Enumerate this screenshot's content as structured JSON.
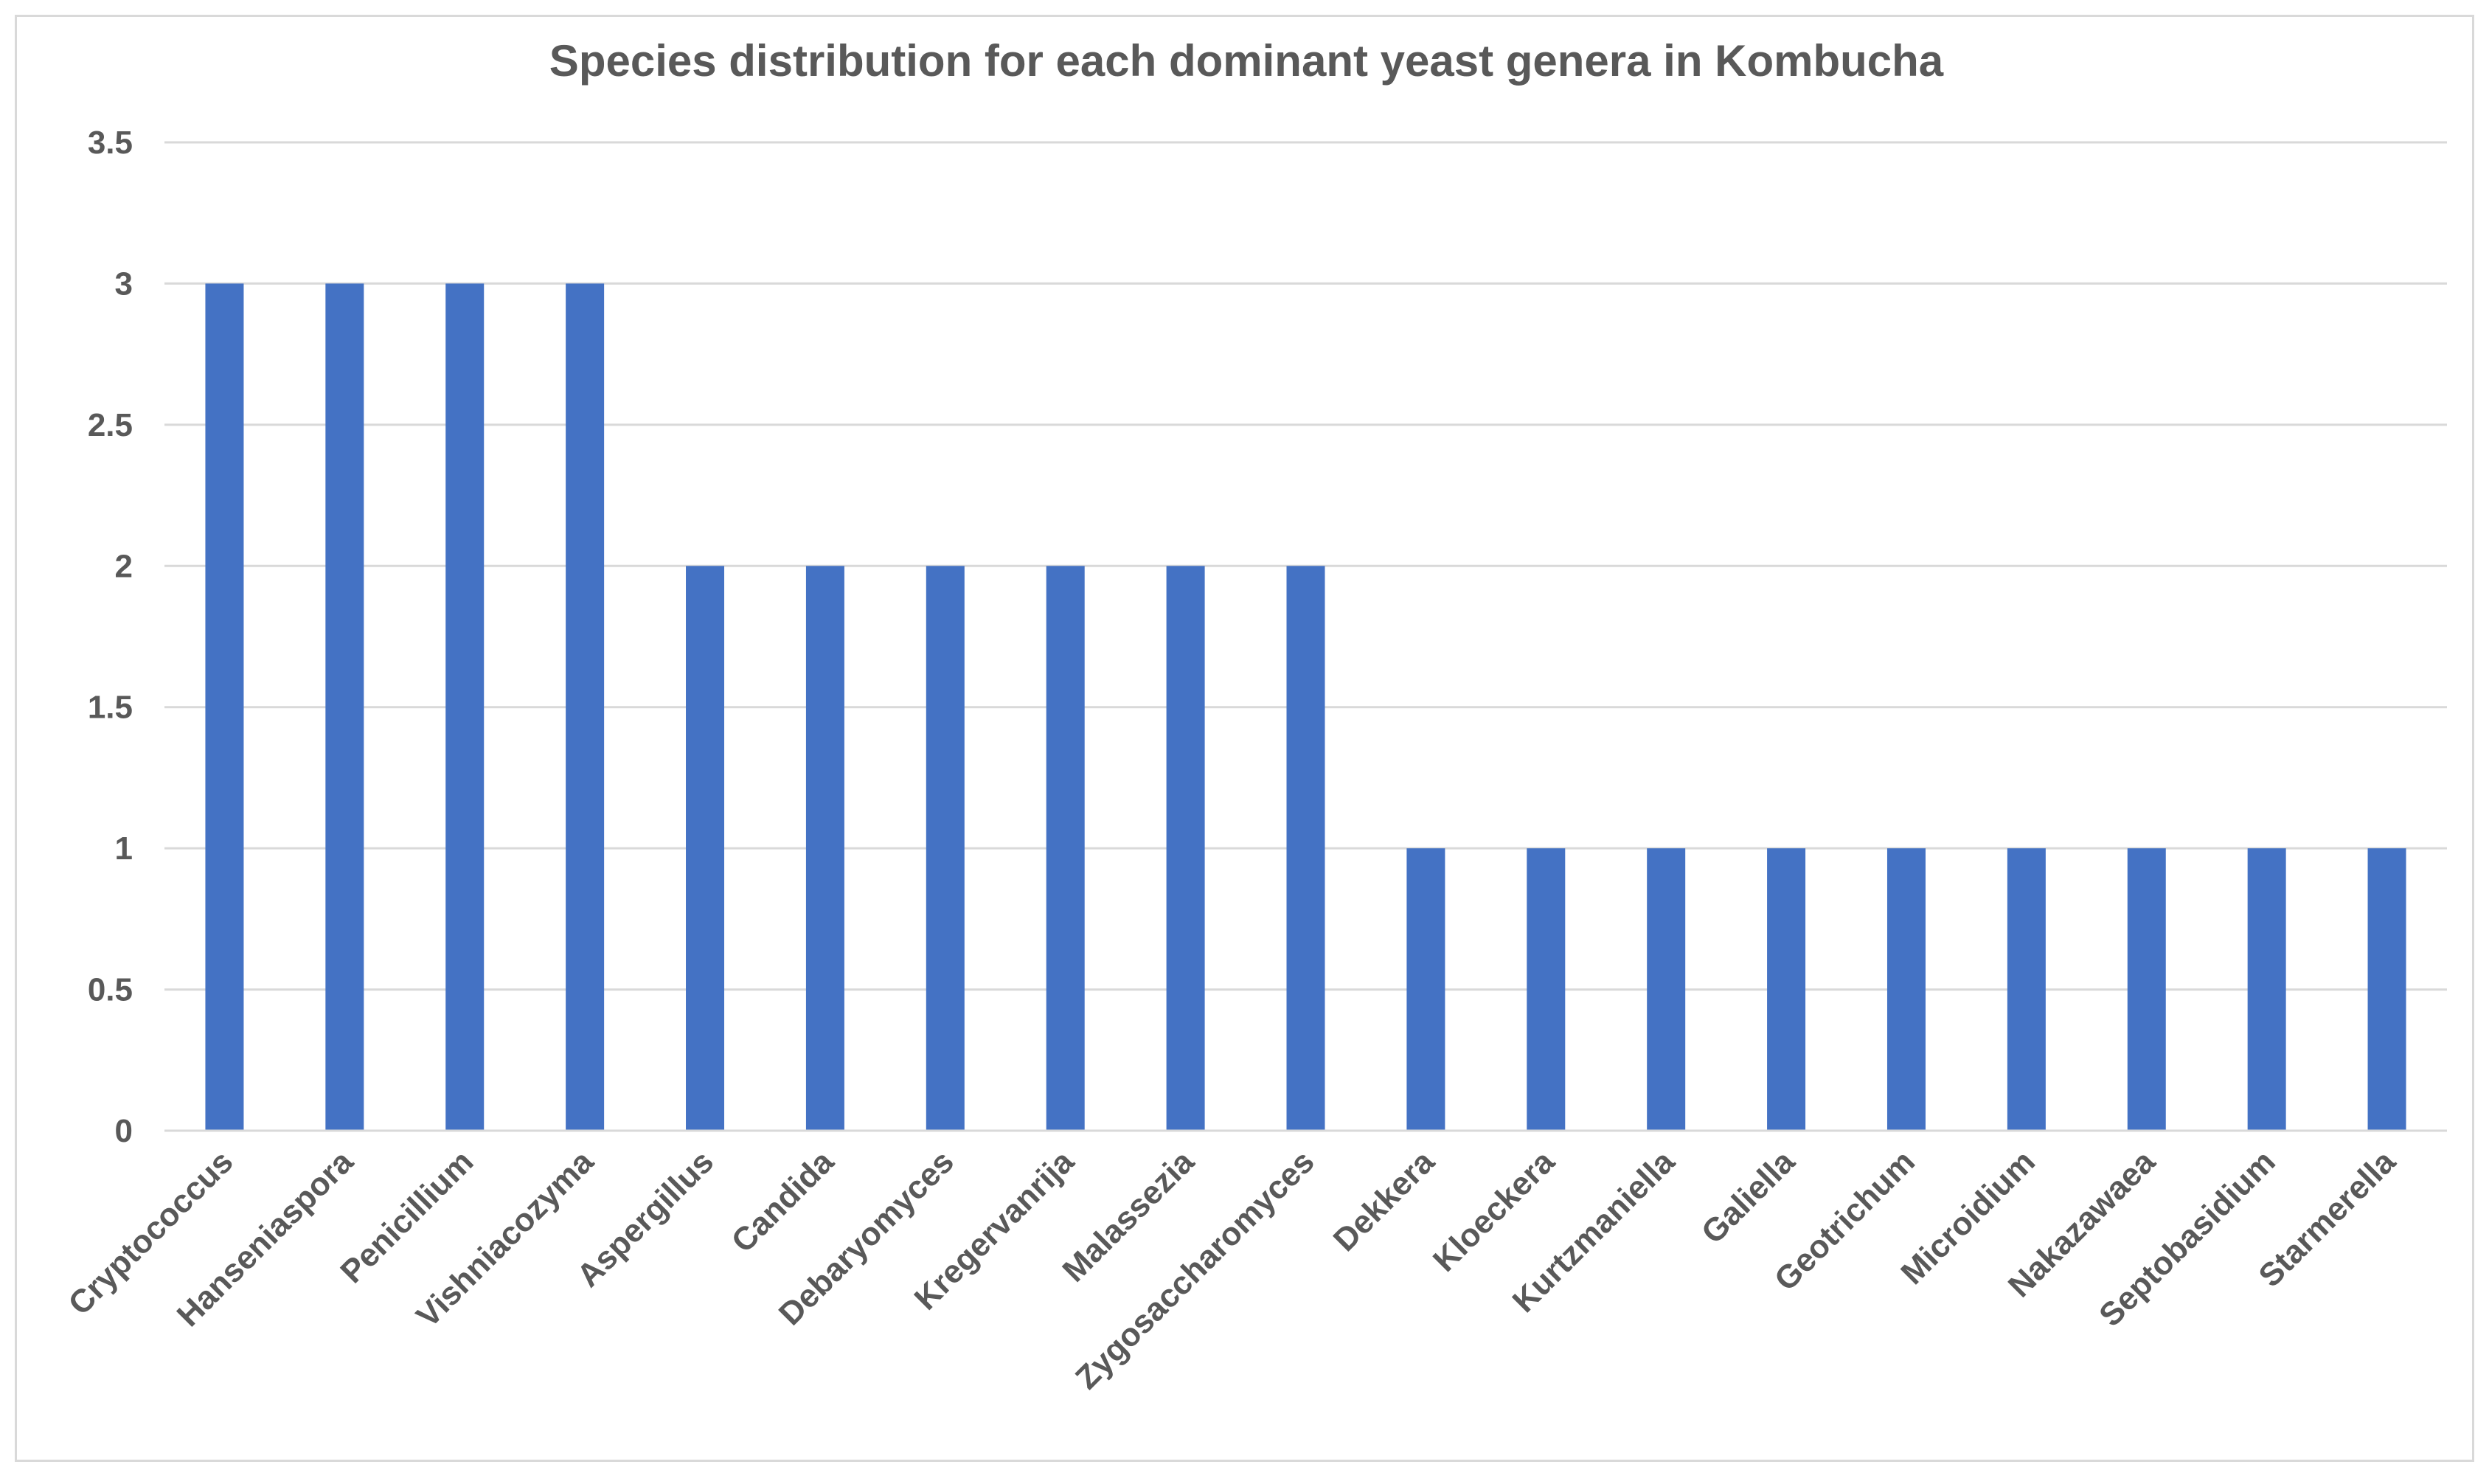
{
  "chart_data": {
    "type": "bar",
    "title": "Species distribution for each dominant yeast genera in Kombucha",
    "xlabel": "",
    "ylabel": "",
    "categories": [
      "Cryptococcus",
      "Hanseniaspora",
      "Penicillium",
      "Vishniacozyma",
      "Aspergillus",
      "Candida",
      "Debaryomyces",
      "Kregervanrija",
      "Malassezia",
      "Zygosaccharomyces",
      "Dekkera",
      "Kloeckera",
      "Kurtzmaniella",
      "Galiella",
      "Geotrichum",
      "Microidium",
      "Nakazawaea",
      "Septobasidium",
      "Starmerella"
    ],
    "values": [
      3,
      3,
      3,
      3,
      2,
      2,
      2,
      2,
      2,
      2,
      1,
      1,
      1,
      1,
      1,
      1,
      1,
      1,
      1
    ],
    "ylim": [
      0,
      3.5
    ],
    "yticks": [
      "0",
      "0.5",
      "1",
      "1.5",
      "2",
      "2.5",
      "3",
      "3.5"
    ],
    "grid": true,
    "legend": "none",
    "colors": {
      "bar": "#4472C4",
      "grid": "#d9d9d9",
      "axis": "#d9d9d9",
      "text": "#595959"
    }
  }
}
